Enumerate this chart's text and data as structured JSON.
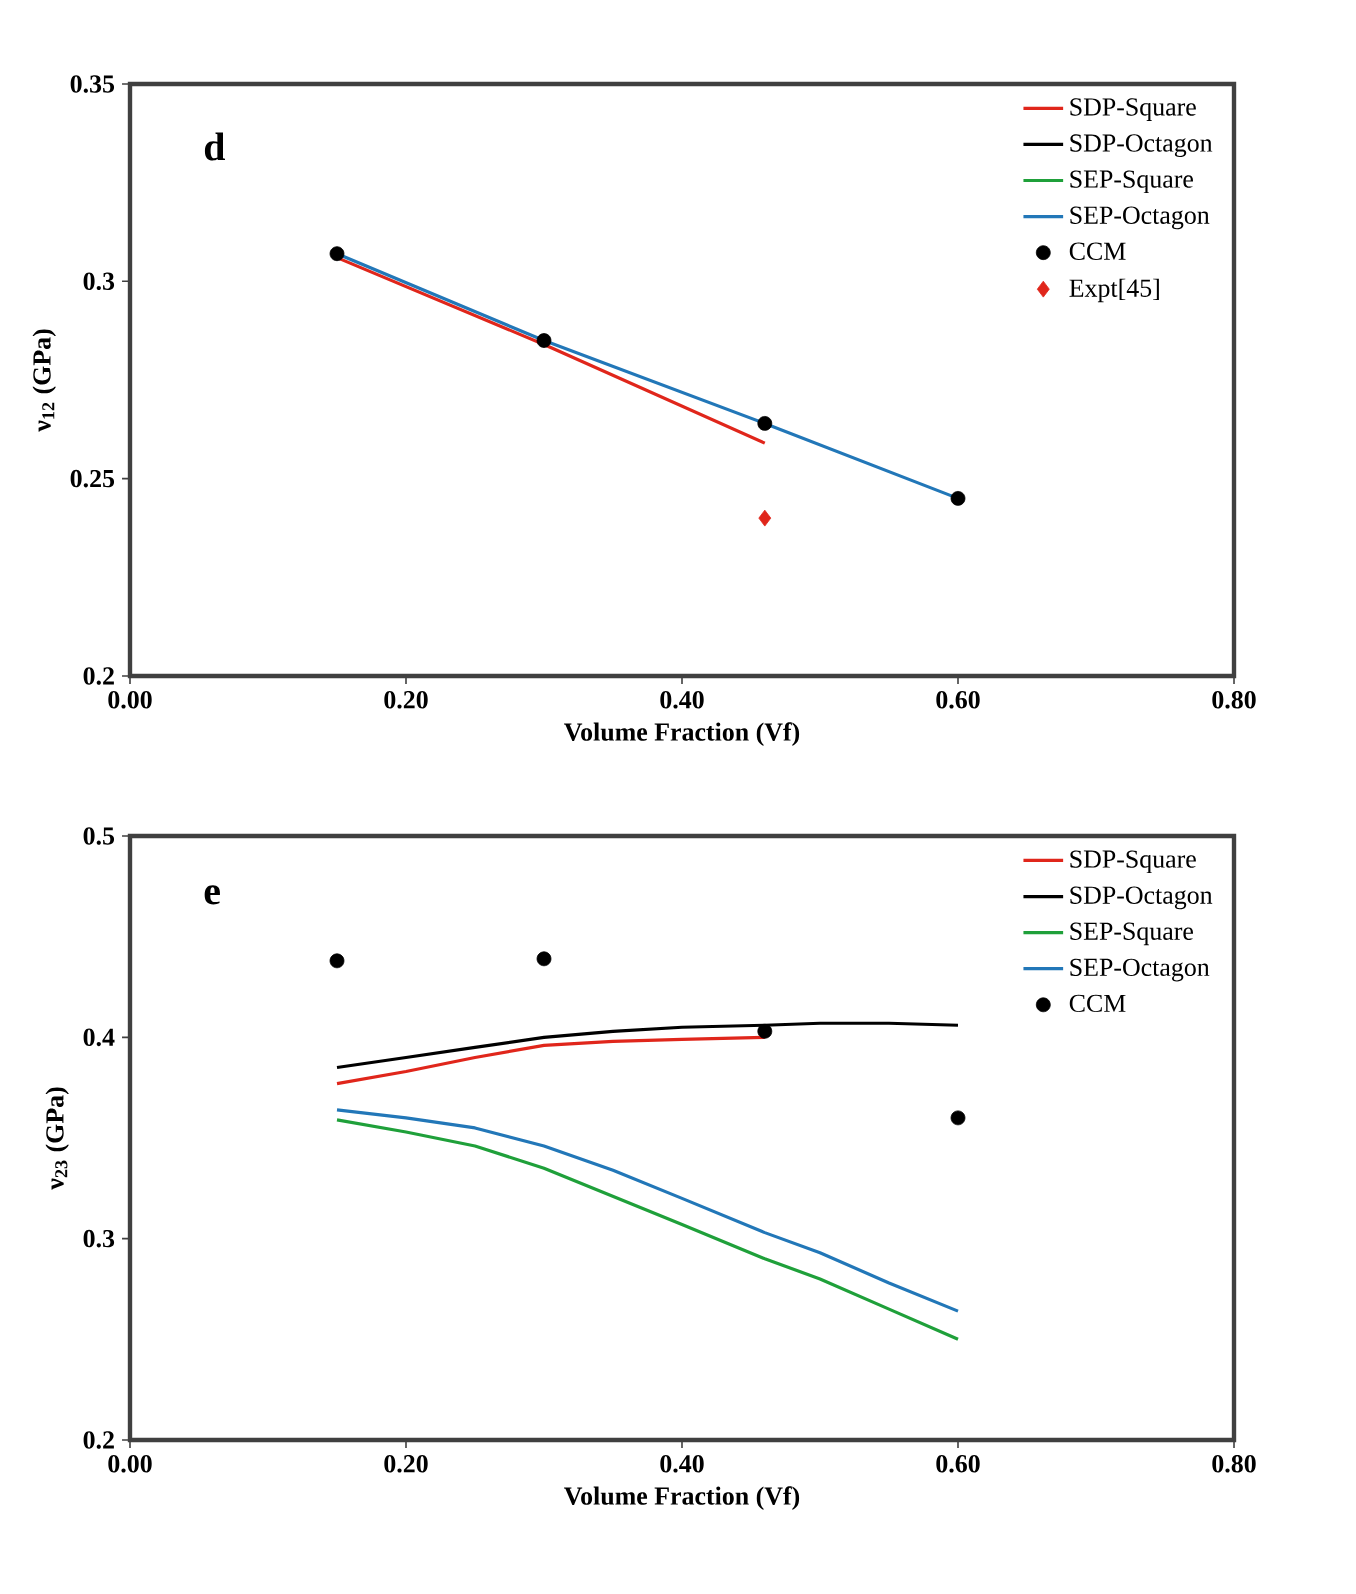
{
  "chart_data": [
    {
      "type": "line",
      "annotations": [
        "d"
      ],
      "xlabel": "Volume Fraction (Vf)",
      "ylabel": "ν$_{12}$ (GPa)",
      "xlim": [
        0,
        0.8
      ],
      "ylim": [
        0.2,
        0.35
      ],
      "xticks": [
        {
          "value": 0,
          "label": "0.00"
        },
        {
          "value": 0.2,
          "label": "0.20"
        },
        {
          "value": 0.4,
          "label": "0.40"
        },
        {
          "value": 0.6,
          "label": "0.60"
        },
        {
          "value": 0.8,
          "label": "0.80"
        }
      ],
      "yticks": [
        0.2,
        0.25,
        0.3,
        0.35
      ],
      "grid": false,
      "legend": "top right",
      "series": [
        {
          "name": "SDP-Square",
          "color": "#e0261b",
          "x": [
            0.15,
            0.3,
            0.46
          ],
          "values": [
            0.306,
            0.284,
            0.259
          ]
        },
        {
          "name": "SDP-Octagon",
          "color": "#000000"
        },
        {
          "name": "SEP-Square",
          "color": "#1fa03a"
        },
        {
          "name": "SEP-Octagon",
          "color": "#2277b8",
          "x": [
            0.15,
            0.3,
            0.46,
            0.6
          ],
          "values": [
            0.307,
            0.285,
            0.264,
            0.245
          ]
        },
        {
          "name": "CCM",
          "type": "scatter",
          "marker": "circle",
          "color": "#000000",
          "x": [
            0.15,
            0.3,
            0.46,
            0.6
          ],
          "values": [
            0.307,
            0.285,
            0.264,
            0.245
          ]
        },
        {
          "name": "Expt[45]",
          "type": "scatter",
          "marker": "diamond",
          "color": "#e0261b",
          "x": [
            0.46
          ],
          "values": [
            0.24
          ]
        }
      ]
    },
    {
      "type": "line",
      "annotations": [
        "e"
      ],
      "xlabel": "Volume Fraction (Vf)",
      "ylabel": "ν$_{23}$ (GPa)",
      "xlim": [
        0,
        0.8
      ],
      "ylim": [
        0.2,
        0.5
      ],
      "xticks": [
        {
          "value": 0,
          "label": "0.00"
        },
        {
          "value": 0.2,
          "label": "0.20"
        },
        {
          "value": 0.4,
          "label": "0.40"
        },
        {
          "value": 0.6,
          "label": "0.60"
        },
        {
          "value": 0.8,
          "label": "0.80"
        }
      ],
      "yticks": [
        0.2,
        0.3,
        0.4,
        0.5
      ],
      "grid": false,
      "legend": "top right",
      "series": [
        {
          "name": "SDP-Square",
          "color": "#e0261b",
          "x": [
            0.15,
            0.2,
            0.25,
            0.3,
            0.35,
            0.4,
            0.46
          ],
          "values": [
            0.377,
            0.383,
            0.39,
            0.396,
            0.398,
            0.399,
            0.4
          ]
        },
        {
          "name": "SDP-Octagon",
          "color": "#000000",
          "x": [
            0.15,
            0.2,
            0.25,
            0.3,
            0.35,
            0.4,
            0.46,
            0.5,
            0.55,
            0.6
          ],
          "values": [
            0.385,
            0.39,
            0.395,
            0.4,
            0.403,
            0.405,
            0.406,
            0.407,
            0.407,
            0.406
          ]
        },
        {
          "name": "SEP-Square",
          "color": "#1fa03a",
          "x": [
            0.15,
            0.2,
            0.25,
            0.3,
            0.35,
            0.4,
            0.46,
            0.5,
            0.55,
            0.6
          ],
          "values": [
            0.359,
            0.353,
            0.346,
            0.335,
            0.321,
            0.307,
            0.29,
            0.28,
            0.265,
            0.25
          ]
        },
        {
          "name": "SEP-Octagon",
          "color": "#2277b8",
          "x": [
            0.15,
            0.2,
            0.25,
            0.3,
            0.35,
            0.4,
            0.46,
            0.5,
            0.55,
            0.6
          ],
          "values": [
            0.364,
            0.36,
            0.355,
            0.346,
            0.334,
            0.32,
            0.303,
            0.293,
            0.278,
            0.264
          ]
        },
        {
          "name": "CCM",
          "type": "scatter",
          "marker": "circle",
          "color": "#000000",
          "x": [
            0.15,
            0.3,
            0.46,
            0.6
          ],
          "values": [
            0.438,
            0.439,
            0.403,
            0.36
          ]
        }
      ]
    }
  ]
}
